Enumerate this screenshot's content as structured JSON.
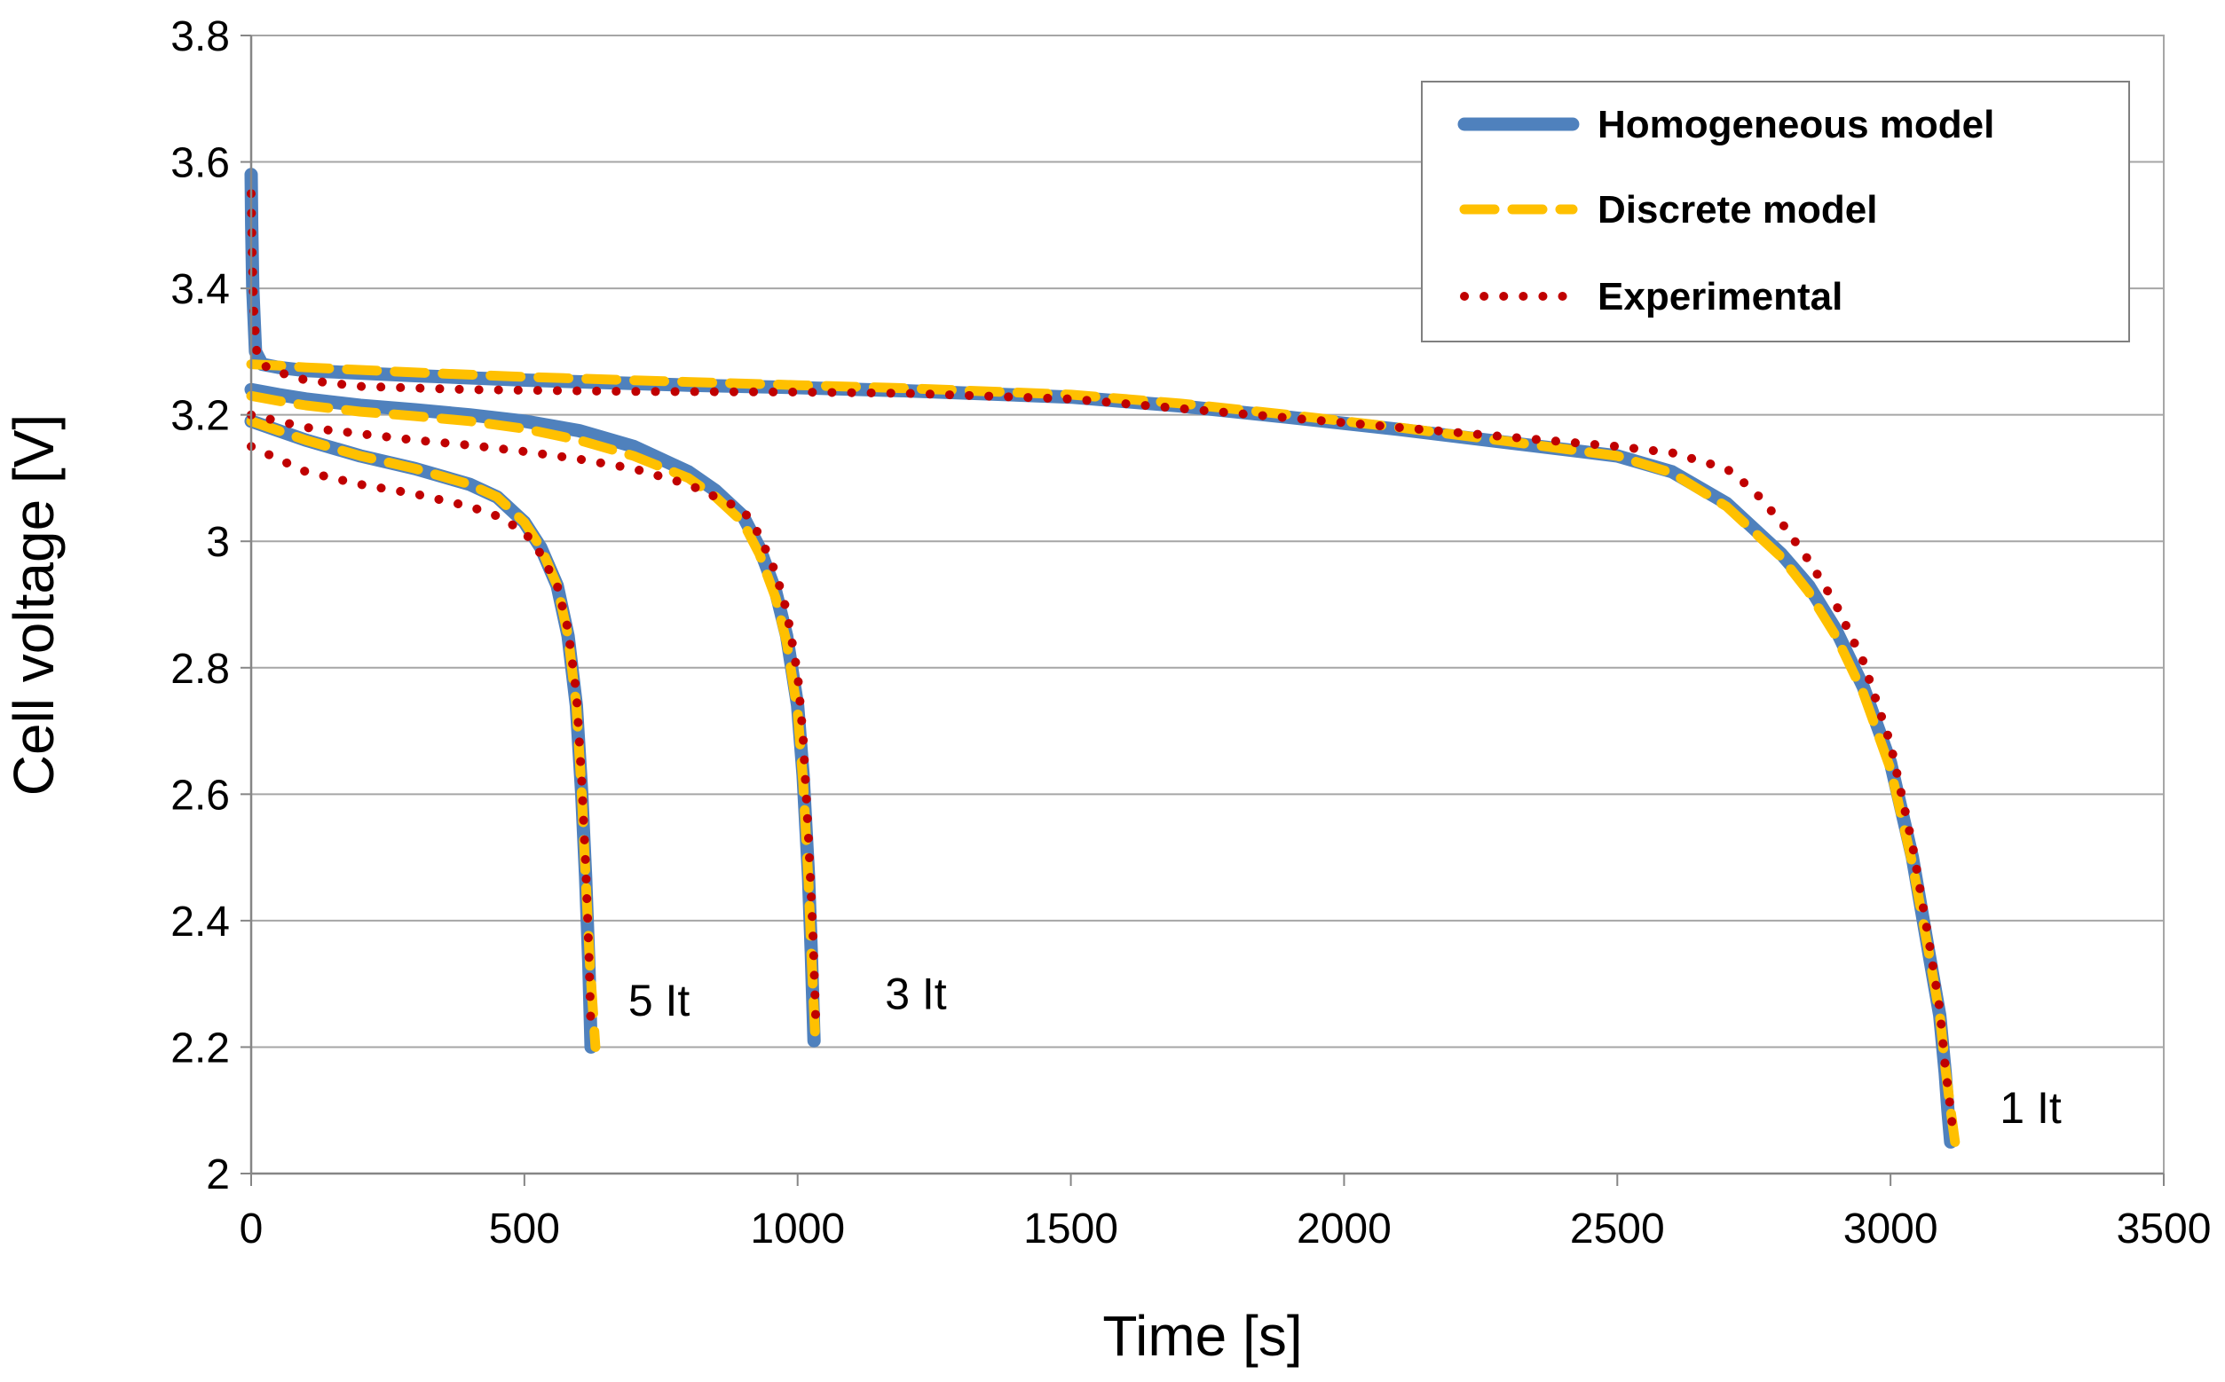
{
  "chart_data": {
    "type": "line",
    "title": "",
    "xlabel": "Time [s]",
    "ylabel": "Cell voltage  [V]",
    "xlim": [
      0,
      3500
    ],
    "ylim": [
      2.0,
      3.8
    ],
    "xticks": [
      0,
      500,
      1000,
      1500,
      2000,
      2500,
      3000,
      3500
    ],
    "yticks": [
      2.0,
      2.2,
      2.4,
      2.6,
      2.8,
      3.0,
      3.2,
      3.4,
      3.6,
      3.8
    ],
    "xtick_labels": [
      "0",
      "500",
      "1000",
      "1500",
      "2000",
      "2500",
      "3000",
      "3500"
    ],
    "ytick_labels": [
      "2",
      "2.2",
      "2.4",
      "2.6",
      "2.8",
      "3",
      "3.2",
      "3.4",
      "3.6",
      "3.8"
    ],
    "grid": "horizontal",
    "legend_position": "top-right",
    "legend": [
      {
        "name": "Homogeneous model",
        "color": "#4f81bd",
        "style": "solid"
      },
      {
        "name": "Discrete model",
        "color": "#ffc000",
        "style": "dashed"
      },
      {
        "name": "Experimental",
        "color": "#c00000",
        "style": "dotted"
      }
    ],
    "annotations": [
      {
        "text": "5 It",
        "x": 690,
        "y": 2.25
      },
      {
        "text": "3 It",
        "x": 1160,
        "y": 2.26
      },
      {
        "text": "1 It",
        "x": 3200,
        "y": 2.08
      }
    ],
    "series": [
      {
        "name": "Homogeneous model",
        "rate": "1 It",
        "x": [
          0,
          1,
          3,
          8,
          20,
          50,
          100,
          300,
          500,
          800,
          1000,
          1200,
          1500,
          1700,
          1900,
          2100,
          2300,
          2500,
          2600,
          2700,
          2800,
          2850,
          2900,
          2950,
          3000,
          3040,
          3070,
          3090,
          3100,
          3105,
          3110
        ],
        "y": [
          3.58,
          3.5,
          3.4,
          3.3,
          3.28,
          3.275,
          3.27,
          3.262,
          3.255,
          3.247,
          3.243,
          3.238,
          3.228,
          3.214,
          3.196,
          3.177,
          3.156,
          3.135,
          3.11,
          3.06,
          2.98,
          2.93,
          2.86,
          2.77,
          2.65,
          2.5,
          2.35,
          2.25,
          2.16,
          2.1,
          2.05
        ]
      },
      {
        "name": "Discrete model",
        "rate": "1 It",
        "x": [
          0,
          50,
          100,
          300,
          500,
          800,
          1000,
          1200,
          1500,
          1700,
          1900,
          2100,
          2300,
          2500,
          2600,
          2700,
          2800,
          2850,
          2900,
          2950,
          3000,
          3040,
          3070,
          3090,
          3100,
          3110,
          3118
        ],
        "y": [
          3.28,
          3.278,
          3.275,
          3.267,
          3.26,
          3.252,
          3.247,
          3.242,
          3.232,
          3.218,
          3.2,
          3.18,
          3.158,
          3.135,
          3.108,
          3.055,
          2.975,
          2.92,
          2.85,
          2.76,
          2.64,
          2.49,
          2.35,
          2.25,
          2.17,
          2.1,
          2.05
        ]
      },
      {
        "name": "Experimental",
        "rate": "1 It",
        "x": [
          0,
          2,
          5,
          10,
          20,
          40,
          100,
          200,
          400,
          700,
          1000,
          1200,
          1500,
          1700,
          1900,
          2100,
          2300,
          2500,
          2600,
          2700,
          2750,
          2800,
          2850,
          2900,
          2950,
          3000,
          3040,
          3070,
          3090,
          3100,
          3110,
          3115
        ],
        "y": [
          3.55,
          3.45,
          3.36,
          3.3,
          3.28,
          3.27,
          3.255,
          3.245,
          3.24,
          3.237,
          3.236,
          3.234,
          3.225,
          3.21,
          3.195,
          3.18,
          3.165,
          3.15,
          3.14,
          3.115,
          3.08,
          3.03,
          2.97,
          2.9,
          2.81,
          2.68,
          2.52,
          2.37,
          2.26,
          2.17,
          2.1,
          2.06
        ]
      },
      {
        "name": "Homogeneous model",
        "rate": "3 It",
        "x": [
          0,
          50,
          100,
          200,
          300,
          400,
          500,
          600,
          700,
          800,
          850,
          900,
          930,
          960,
          980,
          1000,
          1010,
          1020,
          1025,
          1030
        ],
        "y": [
          3.24,
          3.232,
          3.225,
          3.215,
          3.208,
          3.2,
          3.19,
          3.175,
          3.15,
          3.11,
          3.08,
          3.04,
          2.99,
          2.92,
          2.85,
          2.74,
          2.63,
          2.47,
          2.35,
          2.21
        ]
      },
      {
        "name": "Discrete model",
        "rate": "3 It",
        "x": [
          0,
          50,
          100,
          200,
          300,
          400,
          500,
          600,
          700,
          800,
          850,
          900,
          930,
          960,
          980,
          1000,
          1010,
          1020,
          1025,
          1032
        ],
        "y": [
          3.23,
          3.222,
          3.215,
          3.205,
          3.198,
          3.19,
          3.178,
          3.16,
          3.135,
          3.1,
          3.07,
          3.03,
          2.98,
          2.91,
          2.84,
          2.73,
          2.62,
          2.46,
          2.35,
          2.22
        ]
      },
      {
        "name": "Experimental",
        "rate": "3 It",
        "x": [
          0,
          50,
          100,
          200,
          300,
          400,
          500,
          600,
          700,
          800,
          850,
          900,
          930,
          960,
          980,
          1000,
          1010,
          1020,
          1028,
          1033
        ],
        "y": [
          3.2,
          3.19,
          3.18,
          3.17,
          3.16,
          3.152,
          3.142,
          3.13,
          3.115,
          3.09,
          3.07,
          3.05,
          3.01,
          2.95,
          2.89,
          2.79,
          2.69,
          2.53,
          2.38,
          2.25
        ]
      },
      {
        "name": "Homogeneous model",
        "rate": "5 It",
        "x": [
          0,
          50,
          100,
          200,
          300,
          400,
          450,
          500,
          530,
          560,
          580,
          595,
          605,
          612,
          618,
          622
        ],
        "y": [
          3.19,
          3.175,
          3.16,
          3.135,
          3.115,
          3.09,
          3.07,
          3.03,
          2.99,
          2.93,
          2.85,
          2.74,
          2.6,
          2.47,
          2.33,
          2.2
        ]
      },
      {
        "name": "Discrete model",
        "rate": "5 It",
        "x": [
          0,
          50,
          100,
          200,
          300,
          400,
          450,
          500,
          530,
          560,
          580,
          595,
          605,
          612,
          620,
          630
        ],
        "y": [
          3.19,
          3.175,
          3.16,
          3.135,
          3.115,
          3.09,
          3.07,
          3.03,
          2.99,
          2.93,
          2.85,
          2.74,
          2.6,
          2.47,
          2.33,
          2.2
        ]
      },
      {
        "name": "Experimental",
        "rate": "5 It",
        "x": [
          0,
          50,
          100,
          200,
          300,
          400,
          450,
          500,
          530,
          560,
          580,
          595,
          605,
          612,
          618,
          622
        ],
        "y": [
          3.15,
          3.13,
          3.11,
          3.09,
          3.075,
          3.055,
          3.04,
          3.015,
          2.98,
          2.93,
          2.86,
          2.76,
          2.62,
          2.49,
          2.35,
          2.22
        ]
      }
    ]
  }
}
